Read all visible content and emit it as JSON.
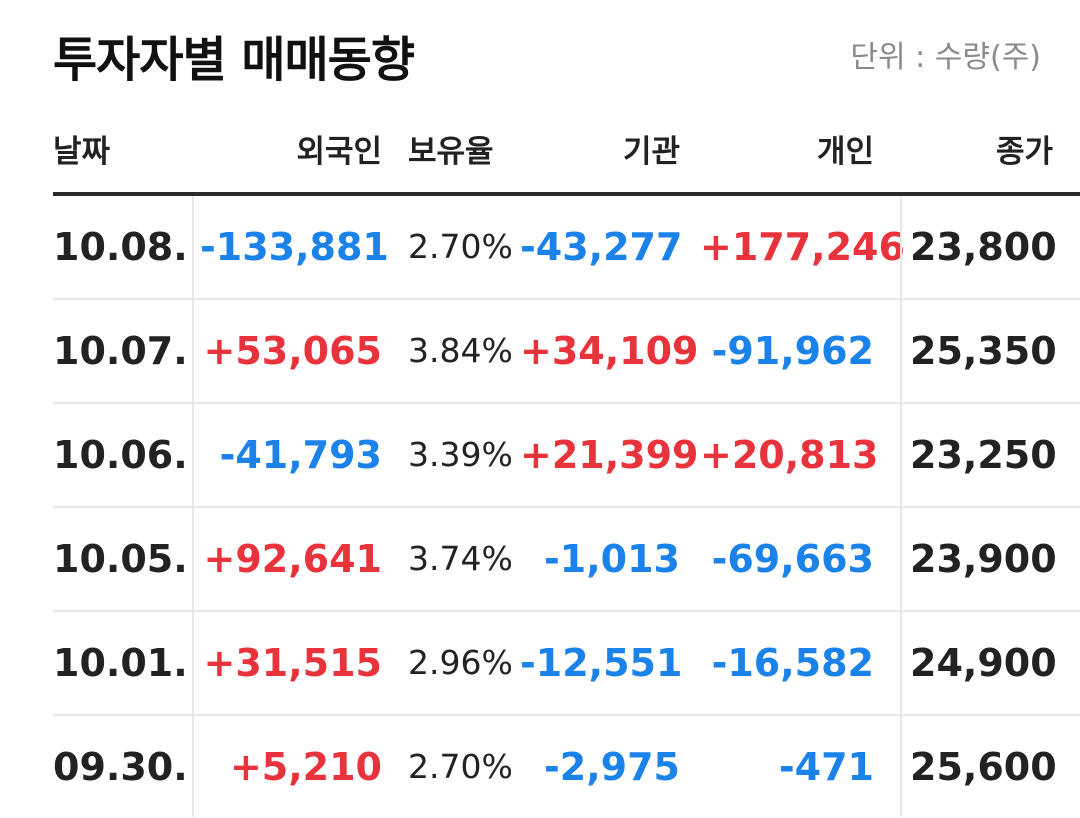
{
  "header": {
    "title": "투자자별 매매동향",
    "unit": "단위 : 수량(주)"
  },
  "columns": {
    "date": "날짜",
    "foreign": "외국인",
    "holding": "보유율",
    "institution": "기관",
    "individual": "개인",
    "close": "종가"
  },
  "colors": {
    "positive": "#e8333c",
    "negative": "#1a82e8"
  },
  "rows": [
    {
      "date": "10.08.",
      "foreign": "-133,881",
      "holding": "2.70%",
      "institution": "-43,277",
      "individual": "+177,246",
      "close": "23,800"
    },
    {
      "date": "10.07.",
      "foreign": "+53,065",
      "holding": "3.84%",
      "institution": "+34,109",
      "individual": "-91,962",
      "close": "25,350"
    },
    {
      "date": "10.06.",
      "foreign": "-41,793",
      "holding": "3.39%",
      "institution": "+21,399",
      "individual": "+20,813",
      "close": "23,250"
    },
    {
      "date": "10.05.",
      "foreign": "+92,641",
      "holding": "3.74%",
      "institution": "-1,013",
      "individual": "-69,663",
      "close": "23,900"
    },
    {
      "date": "10.01.",
      "foreign": "+31,515",
      "holding": "2.96%",
      "institution": "-12,551",
      "individual": "-16,582",
      "close": "24,900"
    },
    {
      "date": "09.30.",
      "foreign": "+5,210",
      "holding": "2.70%",
      "institution": "-2,975",
      "individual": "-471",
      "close": "25,600"
    }
  ]
}
